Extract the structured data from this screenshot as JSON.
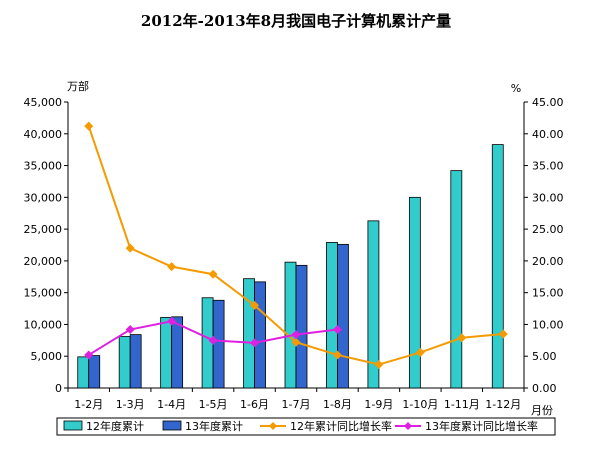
{
  "chart_data": {
    "type": "bar",
    "title": "2012年-2013年8月我国电子计算机累计产量",
    "left_unit": "万部",
    "right_unit": "%",
    "x_unit": "月份",
    "categories": [
      "1-2月",
      "1-3月",
      "1-4月",
      "1-5月",
      "1-6月",
      "1-7月",
      "1-8月",
      "1-9月",
      "1-10月",
      "1-11月",
      "1-12月"
    ],
    "ylim_left": [
      0,
      45000
    ],
    "ylim_right": [
      0,
      45
    ],
    "left_ticks": [
      "0",
      "5,000",
      "10,000",
      "15,000",
      "20,000",
      "25,000",
      "30,000",
      "35,000",
      "40,000",
      "45,000"
    ],
    "right_ticks": [
      "0.00",
      "5.00",
      "10.00",
      "15.00",
      "20.00",
      "25.00",
      "30.00",
      "35.00",
      "40.00",
      "45.00"
    ],
    "series": [
      {
        "name": "12年度累计",
        "kind": "bar",
        "axis": "left",
        "color": "#33CCCC",
        "values": [
          4900,
          8100,
          11100,
          14200,
          17200,
          19800,
          22900,
          26300,
          30000,
          34200,
          38300
        ]
      },
      {
        "name": "13年度累计",
        "kind": "bar",
        "axis": "left",
        "color": "#3366CC",
        "values": [
          5100,
          8400,
          11200,
          13800,
          16700,
          19300,
          22600,
          null,
          null,
          null,
          null
        ]
      },
      {
        "name": "12年累计同比增长率",
        "kind": "line",
        "axis": "right",
        "color": "#F59A00",
        "values": [
          41.2,
          22.0,
          19.1,
          17.9,
          13.0,
          7.2,
          5.2,
          3.7,
          5.6,
          7.9,
          8.5
        ]
      },
      {
        "name": "13年度累计同比增长率",
        "kind": "line",
        "axis": "right",
        "color": "#E020E0",
        "values": [
          5.2,
          9.2,
          10.5,
          7.5,
          7.1,
          8.4,
          9.2,
          null,
          null,
          null,
          null
        ]
      }
    ],
    "grid": false,
    "legend_position": "bottom"
  }
}
